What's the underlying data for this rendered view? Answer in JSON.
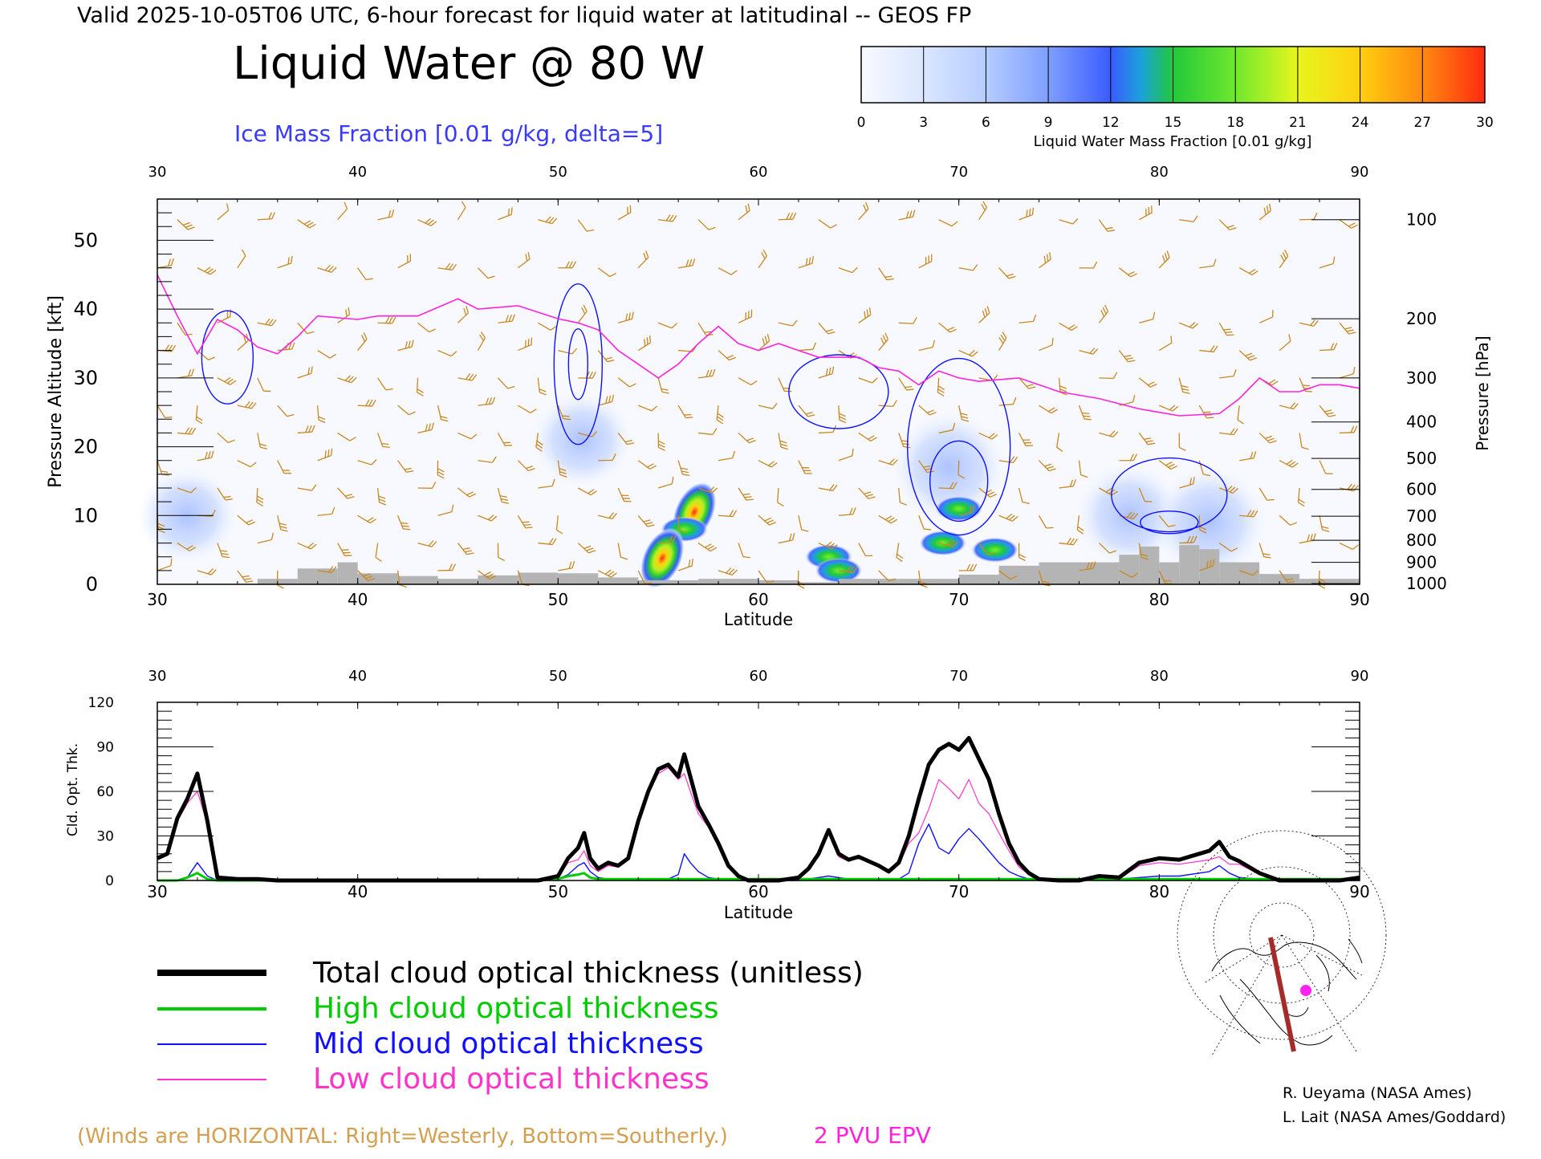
{
  "header": {
    "valid_line": "Valid 2025-10-05T06 UTC, 6-hour forecast for liquid water at latitudinal -- GEOS FP",
    "main_title": "Liquid Water @ 80  W",
    "ice_caption": "Ice Mass Fraction [0.01 g/kg, delta=5]"
  },
  "colorbar": {
    "ticks": [
      "0",
      "3",
      "6",
      "9",
      "12",
      "15",
      "18",
      "21",
      "24",
      "27",
      "30"
    ],
    "label": "Liquid Water Mass Fraction [0.01 g/kg]",
    "colors": [
      "#f5f8ff",
      "#dbe6ff",
      "#b6cdff",
      "#7f9eff",
      "#3a5cff",
      "#1ba2d8",
      "#22c83a",
      "#6fe82d",
      "#d7f51e",
      "#ffcf10",
      "#ff7a10",
      "#ff2a10"
    ]
  },
  "chart_data": [
    {
      "type": "heatmap",
      "xlabel": "Latitude",
      "ylabel": "Pressure Altitude [kft]",
      "y2label": "Pressure [hPa]",
      "xlim": [
        30,
        90
      ],
      "ylim": [
        0,
        56
      ],
      "x_ticks": [
        "30",
        "40",
        "50",
        "60",
        "70",
        "80",
        "90"
      ],
      "y_ticks": [
        "0",
        "10",
        "20",
        "30",
        "40",
        "50"
      ],
      "pressure_ticks": [
        {
          "label": "100",
          "kft": 53
        },
        {
          "label": "200",
          "kft": 38.6
        },
        {
          "label": "300",
          "kft": 30
        },
        {
          "label": "400",
          "kft": 23.6
        },
        {
          "label": "500",
          "kft": 18.3
        },
        {
          "label": "600",
          "kft": 13.8
        },
        {
          "label": "700",
          "kft": 9.9
        },
        {
          "label": "800",
          "kft": 6.4
        },
        {
          "label": "900",
          "kft": 3.2
        },
        {
          "label": "1000",
          "kft": 0.1
        }
      ],
      "liquid_water_blobs": [
        {
          "lat": 56.8,
          "kft": 10.5,
          "value": 27
        },
        {
          "lat": 56.3,
          "kft": 8.0,
          "value": 18
        },
        {
          "lat": 55.2,
          "kft": 3.8,
          "value": 25
        },
        {
          "lat": 63.5,
          "kft": 4.0,
          "value": 14
        },
        {
          "lat": 64.0,
          "kft": 2.0,
          "value": 13
        },
        {
          "lat": 70.0,
          "kft": 11.0,
          "value": 16
        },
        {
          "lat": 69.2,
          "kft": 6.0,
          "value": 12
        },
        {
          "lat": 71.8,
          "kft": 5.0,
          "value": 13
        }
      ],
      "ice_fraction_regions": [
        {
          "lat": 31.5,
          "kft": 10.0,
          "value": 5
        },
        {
          "lat": 51.2,
          "kft": 21.0,
          "value": 5
        },
        {
          "lat": 69.5,
          "kft": 17.0,
          "value": 7
        },
        {
          "lat": 78.5,
          "kft": 10.0,
          "value": 6
        },
        {
          "lat": 82.5,
          "kft": 9.0,
          "value": 7
        }
      ],
      "epv_2pvu": [
        [
          30,
          45
        ],
        [
          31,
          39
        ],
        [
          32,
          33.5
        ],
        [
          33,
          38.5
        ],
        [
          34,
          37
        ],
        [
          35,
          34.5
        ],
        [
          36,
          33.5
        ],
        [
          37,
          36
        ],
        [
          38,
          39
        ],
        [
          40,
          38.5
        ],
        [
          41,
          39
        ],
        [
          43,
          39
        ],
        [
          45,
          41.5
        ],
        [
          46,
          40
        ],
        [
          48,
          40.5
        ],
        [
          50,
          38.6
        ],
        [
          51,
          38
        ],
        [
          52,
          37
        ],
        [
          53,
          34
        ],
        [
          54,
          32
        ],
        [
          55,
          30
        ],
        [
          56,
          32
        ],
        [
          57,
          35
        ],
        [
          58,
          37.5
        ],
        [
          59,
          35
        ],
        [
          60,
          34
        ],
        [
          61,
          35
        ],
        [
          62,
          34
        ],
        [
          63,
          33
        ],
        [
          65,
          33
        ],
        [
          66,
          31.5
        ],
        [
          67,
          31
        ],
        [
          68,
          29
        ],
        [
          69,
          31
        ],
        [
          70,
          30
        ],
        [
          71,
          29.5
        ],
        [
          73,
          30
        ],
        [
          74,
          29
        ],
        [
          75,
          28
        ],
        [
          77,
          27
        ],
        [
          79,
          25.5
        ],
        [
          80,
          25
        ],
        [
          81,
          24.5
        ],
        [
          83,
          24.8
        ],
        [
          84,
          27
        ],
        [
          85,
          30
        ],
        [
          86,
          28
        ],
        [
          87,
          28
        ],
        [
          88,
          29
        ],
        [
          89,
          29
        ],
        [
          90,
          28.5
        ]
      ],
      "surface_kft": [
        [
          30,
          0
        ],
        [
          33,
          0
        ],
        [
          35,
          0.8
        ],
        [
          37,
          2.3
        ],
        [
          39,
          3.2
        ],
        [
          40,
          1.6
        ],
        [
          42,
          1.2
        ],
        [
          44,
          0.8
        ],
        [
          46,
          1.3
        ],
        [
          48,
          1.7
        ],
        [
          50,
          1.6
        ],
        [
          52,
          1.0
        ],
        [
          54,
          0.6
        ],
        [
          57,
          0.8
        ],
        [
          60,
          0.6
        ],
        [
          62,
          0.3
        ],
        [
          64,
          0.8
        ],
        [
          67,
          0.8
        ],
        [
          70,
          1.4
        ],
        [
          72,
          2.7
        ],
        [
          74,
          3.2
        ],
        [
          76,
          3.2
        ],
        [
          78,
          4.3
        ],
        [
          79,
          5.5
        ],
        [
          80,
          3.2
        ],
        [
          81,
          5.7
        ],
        [
          82,
          5.1
        ],
        [
          83,
          3.2
        ],
        [
          85,
          1.5
        ],
        [
          87,
          0.8
        ],
        [
          90,
          0.6
        ]
      ],
      "wind_grid_lat": [
        30,
        32,
        34,
        36,
        38,
        40,
        42,
        44,
        46,
        48,
        50,
        52,
        54,
        56,
        58,
        60,
        62,
        64,
        66,
        68,
        70,
        72,
        74,
        76,
        78,
        80,
        82,
        84,
        86,
        88
      ],
      "wind_grid_kft": [
        2,
        6,
        10,
        14,
        18,
        22,
        26,
        30,
        34,
        38,
        46,
        53
      ]
    },
    {
      "type": "line",
      "xlabel": "Latitude",
      "ylabel": "Cld. Opt. Thk.",
      "xlim": [
        30,
        90
      ],
      "ylim": [
        0,
        120
      ],
      "x_ticks": [
        "30",
        "40",
        "50",
        "60",
        "70",
        "80",
        "90"
      ],
      "y_ticks": [
        "0",
        "30",
        "60",
        "90",
        "120"
      ],
      "x": [
        30,
        30.5,
        31,
        31.5,
        32,
        32.5,
        33,
        34,
        35,
        36,
        40,
        45,
        49,
        50,
        50.5,
        51,
        51.3,
        51.6,
        52,
        52.5,
        53,
        53.5,
        54,
        54.5,
        55,
        55.5,
        56,
        56.3,
        56.6,
        57,
        57.5,
        58,
        58.5,
        59,
        59.5,
        60,
        61,
        62,
        62.5,
        63,
        63.5,
        64,
        64.5,
        65,
        65.5,
        66,
        66.5,
        67,
        67.5,
        68,
        68.5,
        69,
        69.5,
        70,
        70.5,
        71,
        71.5,
        72,
        72.5,
        73,
        73.5,
        74,
        75,
        76,
        77,
        78,
        79,
        80,
        81,
        82,
        82.5,
        83,
        83.5,
        84,
        85,
        86,
        87,
        88,
        89,
        90
      ],
      "series": [
        {
          "name": "Total cloud optical thickness (unitless)",
          "color": "#000000",
          "values": [
            15,
            18,
            42,
            55,
            72,
            40,
            2,
            1,
            1,
            0,
            0,
            0,
            0,
            3,
            15,
            22,
            32,
            15,
            8,
            12,
            10,
            15,
            40,
            60,
            75,
            78,
            70,
            85,
            70,
            50,
            38,
            25,
            10,
            3,
            0,
            0,
            0,
            2,
            8,
            18,
            34,
            18,
            14,
            16,
            13,
            10,
            6,
            12,
            30,
            55,
            78,
            88,
            92,
            88,
            96,
            82,
            68,
            45,
            25,
            12,
            5,
            1,
            0,
            0,
            3,
            2,
            12,
            15,
            14,
            18,
            20,
            26,
            16,
            13,
            5,
            0,
            0,
            0,
            0,
            2
          ]
        },
        {
          "name": "High cloud optical thickness",
          "color": "#00cc00",
          "values": [
            0,
            0,
            0,
            2,
            5,
            1,
            0,
            0,
            0,
            0,
            0,
            0,
            0,
            1,
            3,
            4,
            5,
            2,
            1,
            1,
            1,
            1,
            1,
            1,
            1,
            1,
            1,
            1,
            1,
            1,
            1,
            1,
            1,
            1,
            1,
            1,
            1,
            1,
            1,
            1,
            1,
            1,
            1,
            1,
            1,
            1,
            1,
            1,
            1,
            1,
            1,
            1,
            1,
            1,
            1,
            1,
            1,
            1,
            1,
            1,
            1,
            1,
            1,
            1,
            1,
            1,
            1,
            1,
            1,
            1,
            1,
            1,
            1,
            1,
            1,
            1,
            1,
            1,
            1,
            1
          ]
        },
        {
          "name": "Mid cloud optical thickness",
          "color": "#1010ff",
          "values": [
            0,
            0,
            0,
            2,
            12,
            3,
            0,
            0,
            0,
            0,
            0,
            0,
            0,
            1,
            4,
            10,
            12,
            6,
            2,
            1,
            1,
            1,
            1,
            1,
            1,
            1,
            4,
            18,
            12,
            6,
            2,
            1,
            1,
            0,
            0,
            0,
            0,
            0,
            1,
            2,
            3,
            2,
            1,
            1,
            1,
            1,
            1,
            1,
            5,
            25,
            38,
            22,
            18,
            28,
            35,
            28,
            20,
            12,
            6,
            3,
            1,
            0,
            0,
            0,
            1,
            1,
            2,
            3,
            3,
            5,
            6,
            10,
            5,
            2,
            1,
            0,
            0,
            0,
            0,
            0
          ]
        },
        {
          "name": "Low cloud optical thickness",
          "color": "#ff33cc",
          "values": [
            15,
            18,
            40,
            52,
            60,
            38,
            2,
            1,
            1,
            0,
            0,
            0,
            0,
            2,
            12,
            14,
            20,
            10,
            6,
            10,
            9,
            14,
            38,
            58,
            72,
            76,
            68,
            72,
            60,
            45,
            36,
            24,
            9,
            3,
            0,
            0,
            0,
            2,
            7,
            16,
            32,
            16,
            13,
            15,
            12,
            9,
            5,
            11,
            25,
            32,
            48,
            68,
            62,
            55,
            68,
            52,
            45,
            32,
            20,
            9,
            4,
            1,
            0,
            0,
            2,
            1,
            10,
            12,
            11,
            13,
            14,
            16,
            11,
            11,
            4,
            0,
            0,
            0,
            0,
            2
          ]
        }
      ]
    }
  ],
  "legend": {
    "total": "Total cloud optical thickness (unitless)",
    "high": "High cloud optical thickness",
    "mid": "Mid cloud optical thickness",
    "low": "Low cloud optical thickness"
  },
  "footer": {
    "winds_note": "(Winds are HORIZONTAL: Right=Westerly, Bottom=Southerly.)",
    "epv_label": "2 PVU EPV",
    "credit1": "R. Ueyama (NASA Ames)",
    "credit2": "L. Lait (NASA Ames/Goddard)"
  },
  "colors": {
    "epv": "#ff22dd",
    "ice_contour": "#1010ff",
    "wind_barb": "#c88820",
    "surface": "#b4b4b4",
    "legend_total": "#000000",
    "legend_high": "#00cc00",
    "legend_mid": "#1010ff",
    "legend_low": "#ff33cc",
    "winds_note": "#d4a050",
    "ice_caption": "#3a3aff"
  }
}
